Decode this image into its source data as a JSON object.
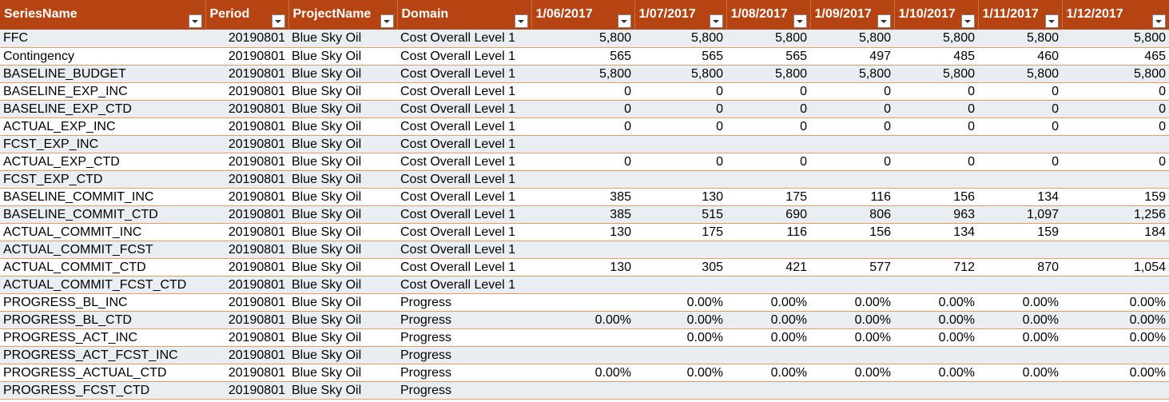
{
  "columns": [
    "SeriesName",
    "Period",
    "ProjectName",
    "Domain",
    "1/06/2017",
    "1/07/2017",
    "1/08/2017",
    "1/09/2017",
    "1/10/2017",
    "1/11/2017",
    "1/12/2017"
  ],
  "rows": [
    [
      "FFC",
      "20190801",
      "Blue Sky Oil",
      "Cost Overall Level 1",
      "5,800",
      "5,800",
      "5,800",
      "5,800",
      "5,800",
      "5,800",
      "5,800"
    ],
    [
      "Contingency",
      "20190801",
      "Blue Sky Oil",
      "Cost Overall Level 1",
      "565",
      "565",
      "565",
      "497",
      "485",
      "460",
      "465"
    ],
    [
      "BASELINE_BUDGET",
      "20190801",
      "Blue Sky Oil",
      "Cost Overall Level 1",
      "5,800",
      "5,800",
      "5,800",
      "5,800",
      "5,800",
      "5,800",
      "5,800"
    ],
    [
      "BASELINE_EXP_INC",
      "20190801",
      "Blue Sky Oil",
      "Cost Overall Level 1",
      "0",
      "0",
      "0",
      "0",
      "0",
      "0",
      "0"
    ],
    [
      "BASELINE_EXP_CTD",
      "20190801",
      "Blue Sky Oil",
      "Cost Overall Level 1",
      "0",
      "0",
      "0",
      "0",
      "0",
      "0",
      "0"
    ],
    [
      "ACTUAL_EXP_INC",
      "20190801",
      "Blue Sky Oil",
      "Cost Overall Level 1",
      "0",
      "0",
      "0",
      "0",
      "0",
      "0",
      "0"
    ],
    [
      "FCST_EXP_INC",
      "20190801",
      "Blue Sky Oil",
      "Cost Overall Level 1",
      "",
      "",
      "",
      "",
      "",
      "",
      ""
    ],
    [
      "ACTUAL_EXP_CTD",
      "20190801",
      "Blue Sky Oil",
      "Cost Overall Level 1",
      "0",
      "0",
      "0",
      "0",
      "0",
      "0",
      "0"
    ],
    [
      "FCST_EXP_CTD",
      "20190801",
      "Blue Sky Oil",
      "Cost Overall Level 1",
      "",
      "",
      "",
      "",
      "",
      "",
      ""
    ],
    [
      "BASELINE_COMMIT_INC",
      "20190801",
      "Blue Sky Oil",
      "Cost Overall Level 1",
      "385",
      "130",
      "175",
      "116",
      "156",
      "134",
      "159"
    ],
    [
      "BASELINE_COMMIT_CTD",
      "20190801",
      "Blue Sky Oil",
      "Cost Overall Level 1",
      "385",
      "515",
      "690",
      "806",
      "963",
      "1,097",
      "1,256"
    ],
    [
      "ACTUAL_COMMIT_INC",
      "20190801",
      "Blue Sky Oil",
      "Cost Overall Level 1",
      "130",
      "175",
      "116",
      "156",
      "134",
      "159",
      "184"
    ],
    [
      "ACTUAL_COMMIT_FCST",
      "20190801",
      "Blue Sky Oil",
      "Cost Overall Level 1",
      "",
      "",
      "",
      "",
      "",
      "",
      ""
    ],
    [
      "ACTUAL_COMMIT_CTD",
      "20190801",
      "Blue Sky Oil",
      "Cost Overall Level 1",
      "130",
      "305",
      "421",
      "577",
      "712",
      "870",
      "1,054"
    ],
    [
      "ACTUAL_COMMIT_FCST_CTD",
      "20190801",
      "Blue Sky Oil",
      "Cost Overall Level 1",
      "",
      "",
      "",
      "",
      "",
      "",
      ""
    ],
    [
      "PROGRESS_BL_INC",
      "20190801",
      "Blue Sky Oil",
      "Progress",
      "",
      "0.00%",
      "0.00%",
      "0.00%",
      "0.00%",
      "0.00%",
      "0.00%"
    ],
    [
      "PROGRESS_BL_CTD",
      "20190801",
      "Blue Sky Oil",
      "Progress",
      "0.00%",
      "0.00%",
      "0.00%",
      "0.00%",
      "0.00%",
      "0.00%",
      "0.00%"
    ],
    [
      "PROGRESS_ACT_INC",
      "20190801",
      "Blue Sky Oil",
      "Progress",
      "",
      "0.00%",
      "0.00%",
      "0.00%",
      "0.00%",
      "0.00%",
      "0.00%"
    ],
    [
      "PROGRESS_ACT_FCST_INC",
      "20190801",
      "Blue Sky Oil",
      "Progress",
      "",
      "",
      "",
      "",
      "",
      "",
      ""
    ],
    [
      "PROGRESS_ACTUAL_CTD",
      "20190801",
      "Blue Sky Oil",
      "Progress",
      "0.00%",
      "0.00%",
      "0.00%",
      "0.00%",
      "0.00%",
      "0.00%",
      "0.00%"
    ],
    [
      "PROGRESS_FCST_CTD",
      "20190801",
      "Blue Sky Oil",
      "Progress",
      "",
      "",
      "",
      "",
      "",
      "",
      ""
    ]
  ],
  "colors": {
    "header_bg": "#b54412",
    "header_text": "#ffffff",
    "band": "#e8eef2",
    "row_line": "#e99a6a"
  }
}
